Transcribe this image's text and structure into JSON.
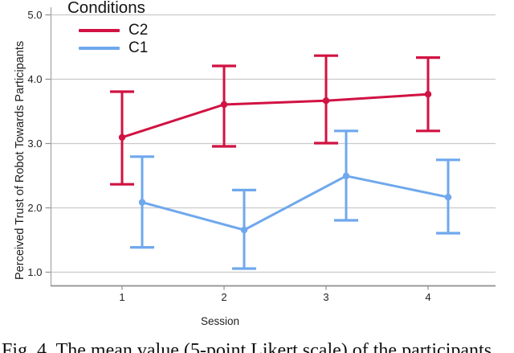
{
  "figure": {
    "caption": "Fig. 4. The mean value (5-point Likert scale) of the participants"
  },
  "chart_data": {
    "type": "line",
    "title": "",
    "xlabel": "Session",
    "ylabel": "Perceived Trust of Robot Towards Participants",
    "categories": [
      "1",
      "2",
      "3",
      "4"
    ],
    "yticks": [
      "5.0",
      "4.0",
      "3.0",
      "2.0",
      "1.0"
    ],
    "ylim": [
      1.0,
      5.0
    ],
    "grid": "horizontal",
    "legend": {
      "title": "Conditions",
      "position": "top-left"
    },
    "series": [
      {
        "name": "C2",
        "color": "#D11242",
        "means": [
          3.09,
          3.6,
          3.66,
          3.76
        ],
        "ci_low": [
          2.36,
          2.95,
          3.0,
          3.19
        ],
        "ci_high": [
          3.8,
          4.2,
          4.36,
          4.33
        ]
      },
      {
        "name": "C1",
        "color": "#6FA8ED",
        "means": [
          2.08,
          1.65,
          2.49,
          2.16
        ],
        "ci_low": [
          1.38,
          1.05,
          1.8,
          1.6
        ],
        "ci_high": [
          2.79,
          2.27,
          3.19,
          2.74
        ]
      }
    ]
  }
}
